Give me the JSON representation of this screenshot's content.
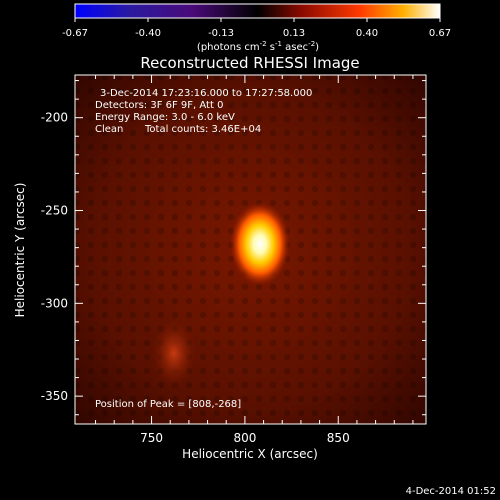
{
  "chart_data": {
    "type": "heatmap",
    "title": "Reconstructed RHESSI Image",
    "xlabel": "Heliocentric X (arcsec)",
    "ylabel": "Heliocentric Y (arcsec)",
    "xlim": [
      709,
      897
    ],
    "ylim": [
      -365,
      -177
    ],
    "xticks": [
      750,
      800,
      850
    ],
    "yticks": [
      -200,
      -250,
      -300,
      -350
    ],
    "colorbar": {
      "min": -0.67,
      "max": 0.67,
      "ticks": [
        "-0.67",
        "-0.40",
        "-0.13",
        "0.13",
        "0.40",
        "0.67"
      ],
      "unit_prefix": "(photons cm",
      "unit_sup1": "-2",
      "unit_mid": " s",
      "unit_sup2": "-1",
      "unit_mid2": " asec",
      "unit_sup3": "-2",
      "unit_suffix": ")"
    },
    "annotations": {
      "time_range": "3-Dec-2014 17:23:16.000 to 17:27:58.000",
      "detectors": "Detectors: 3F 6F 9F, Att 0",
      "energy": "Energy Range: 3.0 - 6.0 keV",
      "method": "Clean",
      "counts": "Total counts: 3.46E+04",
      "peak_label": "Position of Peak = [808,-268]"
    },
    "peak": {
      "x": 808,
      "y": -268
    },
    "secondary_source": {
      "x": 762,
      "y": -327
    },
    "footer_timestamp": "4-Dec-2014 01:52"
  }
}
